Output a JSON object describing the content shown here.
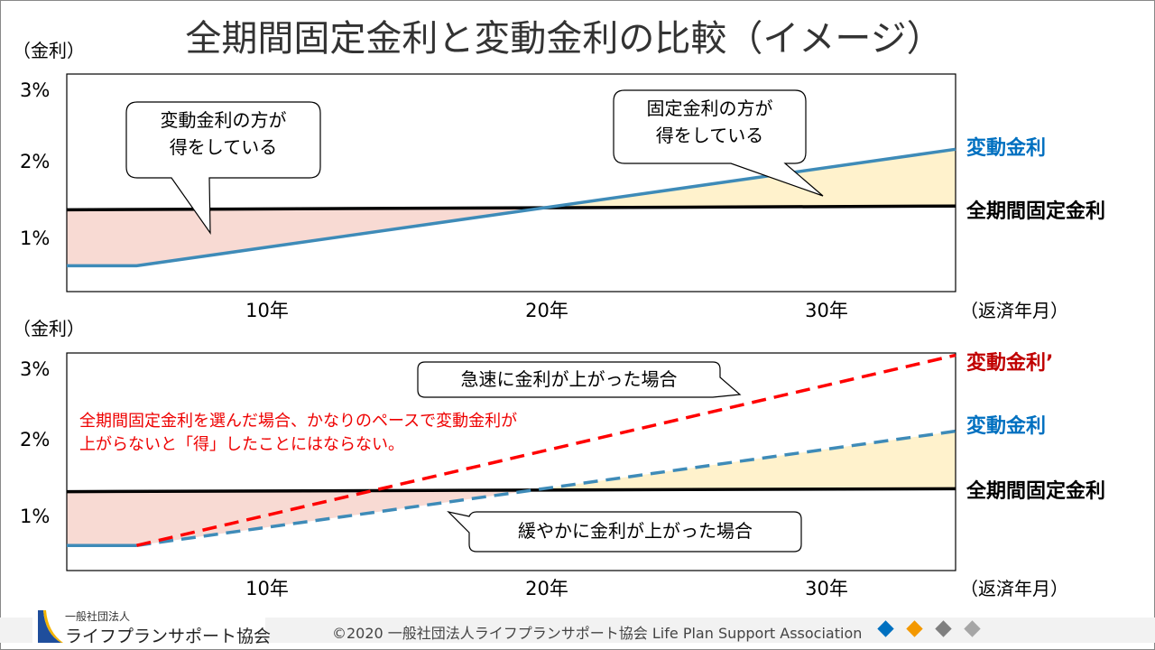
{
  "title": "全期間固定金利と変動金利の比較（イメージ）",
  "colors": {
    "fixed": "#000000",
    "variable": "#3E8BB8",
    "variable_fast": "#FF0000",
    "gain_variable": "#F8DAD3",
    "gain_fixed": "#FFF2CC",
    "variable_label": "#0070C0",
    "variable_fast_label": "#C00000"
  },
  "chart_data": [
    {
      "type": "line",
      "ylabel": "（金利）",
      "xlabel": "（返済年月）",
      "yticks": [
        "1%",
        "2%",
        "3%"
      ],
      "ytick_values": [
        1,
        2,
        3
      ],
      "xticks": [
        "10年",
        "20年",
        "30年"
      ],
      "xtick_values": [
        10,
        20,
        30
      ],
      "xlim": [
        2.8,
        34.6
      ],
      "ylim": [
        0.28,
        3.23
      ],
      "series": [
        {
          "name": "全期間固定金利",
          "style": "solid",
          "color": "#000000",
          "points": [
            [
              2.8,
              1.39
            ],
            [
              34.6,
              1.44
            ]
          ]
        },
        {
          "name": "変動金利",
          "style": "solid",
          "color": "#3E8BB8",
          "points": [
            [
              2.8,
              0.63
            ],
            [
              5.3,
              0.63
            ],
            [
              34.6,
              2.21
            ]
          ]
        }
      ],
      "callouts": [
        "変動金利の方が\n得をしている",
        "固定金利の方が\n得をしている"
      ]
    },
    {
      "type": "line",
      "ylabel": "（金利）",
      "xlabel": "（返済年月）",
      "yticks": [
        "1%",
        "2%",
        "3%"
      ],
      "ytick_values": [
        1,
        2,
        3
      ],
      "xticks": [
        "10年",
        "20年",
        "30年"
      ],
      "xtick_values": [
        10,
        20,
        30
      ],
      "xlim": [
        2.8,
        34.6
      ],
      "ylim": [
        0.28,
        3.23
      ],
      "series": [
        {
          "name": "全期間固定金利",
          "style": "solid",
          "color": "#000000",
          "points": [
            [
              2.8,
              1.35
            ],
            [
              34.6,
              1.39
            ]
          ]
        },
        {
          "name": "変動金利",
          "style": "dashed-after-start",
          "color": "#3E8BB8",
          "points": [
            [
              2.8,
              0.62
            ],
            [
              5.3,
              0.62
            ],
            [
              34.6,
              2.17
            ]
          ]
        },
        {
          "name": "変動金利’",
          "style": "dashed",
          "color": "#FF0000",
          "points": [
            [
              5.3,
              0.62
            ],
            [
              34.6,
              3.2
            ]
          ]
        }
      ],
      "callouts": [
        "急速に金利が上がった場合",
        "緩やかに金利が上がった場合"
      ],
      "note": [
        "全期間固定金利を選んだ場合、かなりのペースで変動金利が",
        "上がらないと「得」したことにはならない。"
      ]
    }
  ],
  "footer": {
    "logo_small": "一般社団法人",
    "logo_main": "ライフプランサポート協会",
    "copyright": "©2020 一般社団法人ライフプランサポート協会  Life Plan Support Association",
    "diamonds": [
      "#0070C0",
      "#F39800",
      "#7F7F7F",
      "#A6A6A6"
    ]
  }
}
